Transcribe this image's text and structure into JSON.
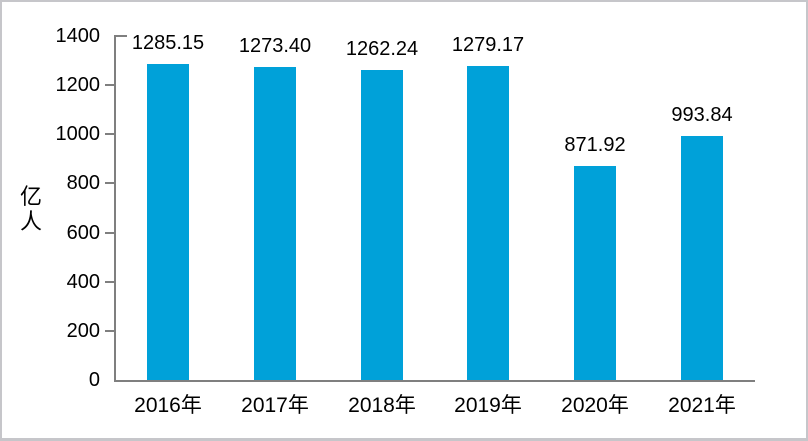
{
  "window": {
    "background_color": "#ffffff",
    "border_color": "#c6c6ca"
  },
  "chart_data": {
    "type": "bar",
    "title": "",
    "categories": [
      "2016年",
      "2017年",
      "2018年",
      "2019年",
      "2020年",
      "2021年"
    ],
    "values": [
      1285.15,
      1273.4,
      1262.24,
      1279.17,
      871.92,
      993.84
    ],
    "value_labels": [
      "1285.15",
      "1273.40",
      "1262.24",
      "1279.17",
      "871.92",
      "993.84"
    ],
    "xlabel": "",
    "ylabel": "亿人",
    "ylim": [
      0,
      1400
    ],
    "ytick_interval": 200,
    "yticks": [
      0,
      200,
      400,
      600,
      800,
      1000,
      1200,
      1400
    ],
    "grid": false,
    "legend_position": "none",
    "data_labels_shown": true,
    "bar_color": "#00a1d9",
    "axis_color": "#7f7f7f",
    "text_color": "#000000"
  }
}
